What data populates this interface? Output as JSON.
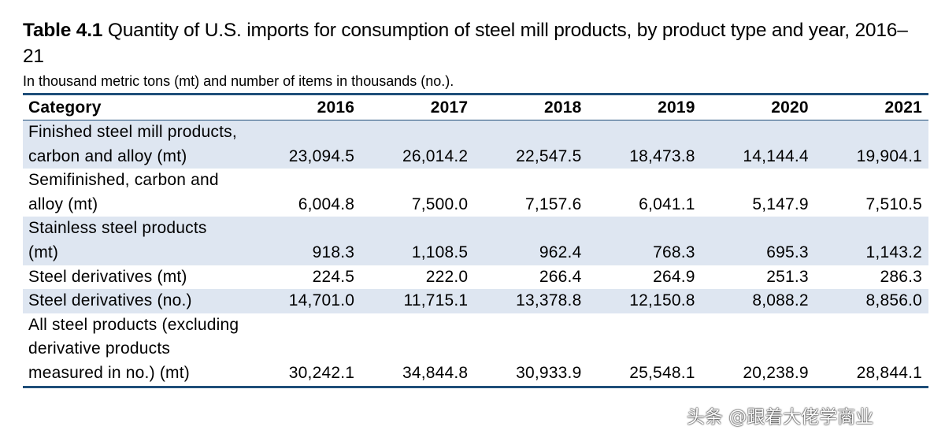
{
  "title": {
    "label": "Table 4.1",
    "text": "Quantity of U.S. imports for consumption of steel mill products, by product type and year, 2016–21"
  },
  "subtitle": "In thousand metric tons (mt) and number of items in thousands (no.).",
  "table": {
    "header": [
      "Category",
      "2016",
      "2017",
      "2018",
      "2019",
      "2020",
      "2021"
    ],
    "rows": [
      {
        "category": "Finished steel mill products, carbon and alloy (mt)",
        "values": [
          "23,094.5",
          "26,014.2",
          "22,547.5",
          "18,473.8",
          "14,144.4",
          "19,904.1"
        ]
      },
      {
        "category": "Semifinished, carbon and alloy (mt)",
        "values": [
          "6,004.8",
          "7,500.0",
          "7,157.6",
          "6,041.1",
          "5,147.9",
          "7,510.5"
        ]
      },
      {
        "category": "Stainless steel products (mt)",
        "values": [
          "918.3",
          "1,108.5",
          "962.4",
          "768.3",
          "695.3",
          "1,143.2"
        ]
      },
      {
        "category": "Steel derivatives (mt)",
        "values": [
          "224.5",
          "222.0",
          "266.4",
          "264.9",
          "251.3",
          "286.3"
        ]
      },
      {
        "category": "Steel derivatives (no.)",
        "values": [
          "14,701.0",
          "11,715.1",
          "13,378.8",
          "12,150.8",
          "8,088.2",
          "8,856.0"
        ]
      },
      {
        "category": "All steel products (excluding derivative products measured in no.) (mt)",
        "values": [
          "30,242.1",
          "34,844.8",
          "30,933.9",
          "25,548.1",
          "20,238.9",
          "28,844.1"
        ]
      }
    ]
  },
  "watermark": "头条 @跟着大佬学商业",
  "colors": {
    "rule": "#1f4e79",
    "row_shade": "#dee6f1"
  }
}
